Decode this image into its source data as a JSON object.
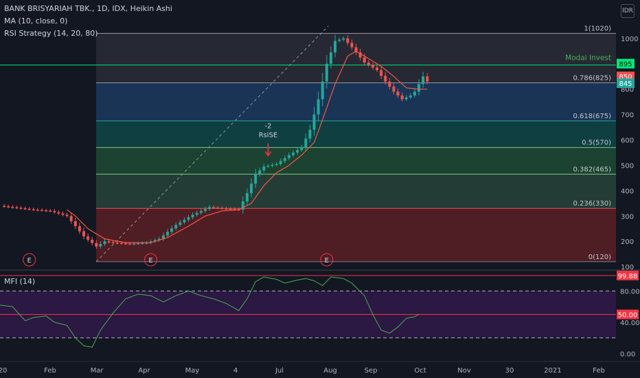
{
  "legend": {
    "symbol_line": "BANK BRISYARIAH TBK., 1D, IDX, Heikin Ashi",
    "ma_line": "MA (10, close, 0)",
    "rsi_line": "RSI Strategy (14, 20, 80)"
  },
  "currency_badge": "IDR",
  "colors": {
    "background": "#131722",
    "up": "#26a69a",
    "down": "#ef5350",
    "ma": "#f05a46",
    "fib_line": "#787b86",
    "modal_invest": "#00e676",
    "mfi": "#4caf50",
    "mfi_band": "#6a1b9a",
    "mfi_ref": "#f23645"
  },
  "chart_data": {
    "type": "candlestick",
    "title": "BANK BRISYARIAH TBK., 1D, IDX, Heikin Ashi",
    "x_tick_labels": [
      "20",
      "Feb",
      "Mar",
      "Apr",
      "May",
      "4",
      "Jul",
      "Aug",
      "Sep",
      "Oct",
      "Nov",
      "30",
      "2021",
      "Feb"
    ],
    "y_ticks": [
      100,
      200,
      300,
      400,
      500,
      600,
      700,
      800,
      900,
      1000
    ],
    "y_range": [
      95,
      1070
    ],
    "fibonacci": [
      {
        "label": "1(1020)",
        "value": 1020
      },
      {
        "label": "0.786(825)",
        "value": 825
      },
      {
        "label": "0.618(675)",
        "value": 675
      },
      {
        "label": "0.5(570)",
        "value": 570
      },
      {
        "label": "0.382(465)",
        "value": 465
      },
      {
        "label": "0.236(330)",
        "value": 330
      },
      {
        "label": "0(120)",
        "value": 120
      }
    ],
    "horizontal_line": {
      "label": "Modal Invest",
      "value": 895
    },
    "price_labels": [
      {
        "text": "895",
        "value": 895,
        "color": "#00e676"
      },
      {
        "text": "850",
        "value": 850,
        "color": "#ef5350"
      },
      {
        "text": "845",
        "value": 845,
        "color": "#26a69a"
      }
    ],
    "signal": {
      "text1": "-2",
      "text2": "RsiSE",
      "date_index": 64,
      "value": 505
    },
    "earnings_markers": [
      {
        "text": "E",
        "date_index": 7
      },
      {
        "text": "E",
        "date_index": 36
      },
      {
        "text": "E",
        "date_index": 78
      }
    ],
    "price_keypoints": [
      [
        0,
        340
      ],
      [
        8,
        325
      ],
      [
        12,
        320
      ],
      [
        16,
        300
      ],
      [
        18,
        260
      ],
      [
        20,
        220
      ],
      [
        23,
        180
      ],
      [
        25,
        200
      ],
      [
        27,
        195
      ],
      [
        31,
        190
      ],
      [
        35,
        195
      ],
      [
        38,
        210
      ],
      [
        42,
        265
      ],
      [
        46,
        305
      ],
      [
        50,
        335
      ],
      [
        53,
        330
      ],
      [
        57,
        325
      ],
      [
        59,
        390
      ],
      [
        61,
        465
      ],
      [
        63,
        495
      ],
      [
        66,
        505
      ],
      [
        69,
        540
      ],
      [
        72,
        570
      ],
      [
        74,
        640
      ],
      [
        76,
        760
      ],
      [
        78,
        900
      ],
      [
        80,
        990
      ],
      [
        82,
        1000
      ],
      [
        84,
        965
      ],
      [
        87,
        905
      ],
      [
        90,
        875
      ],
      [
        92,
        830
      ],
      [
        94,
        790
      ],
      [
        96,
        760
      ],
      [
        98,
        775
      ],
      [
        99,
        790
      ],
      [
        101,
        850
      ],
      [
        102,
        830
      ]
    ],
    "ma_keypoints": [
      [
        16,
        325
      ],
      [
        18,
        300
      ],
      [
        21,
        250
      ],
      [
        25,
        210
      ],
      [
        30,
        195
      ],
      [
        36,
        195
      ],
      [
        40,
        215
      ],
      [
        45,
        260
      ],
      [
        49,
        300
      ],
      [
        53,
        320
      ],
      [
        57,
        325
      ],
      [
        60,
        350
      ],
      [
        63,
        420
      ],
      [
        66,
        470
      ],
      [
        69,
        500
      ],
      [
        72,
        540
      ],
      [
        75,
        590
      ],
      [
        77,
        680
      ],
      [
        80,
        820
      ],
      [
        83,
        930
      ],
      [
        85,
        950
      ],
      [
        88,
        920
      ],
      [
        91,
        890
      ],
      [
        94,
        850
      ],
      [
        97,
        805
      ],
      [
        100,
        800
      ],
      [
        102,
        800
      ]
    ],
    "mfi": {
      "name": "MFI (14)",
      "y_ticks": [
        0,
        20,
        40,
        60,
        80,
        100
      ],
      "y_tick_labels": [
        "0.00",
        "",
        "40.00",
        "",
        "80.00",
        ""
      ],
      "y_range": [
        -5,
        105
      ],
      "upper_band": 80,
      "lower_band": 20,
      "ref_lines": [
        99.88,
        50
      ],
      "value_labels": [
        {
          "text": "99.88",
          "value": 99.88
        },
        {
          "text": "50.00",
          "value": 50
        }
      ],
      "keypoints": [
        [
          0,
          62
        ],
        [
          3,
          60
        ],
        [
          6,
          42
        ],
        [
          8,
          46
        ],
        [
          11,
          48
        ],
        [
          13,
          40
        ],
        [
          16,
          36
        ],
        [
          18,
          20
        ],
        [
          20,
          10
        ],
        [
          22,
          8
        ],
        [
          24,
          30
        ],
        [
          27,
          52
        ],
        [
          30,
          70
        ],
        [
          33,
          76
        ],
        [
          36,
          74
        ],
        [
          39,
          66
        ],
        [
          42,
          74
        ],
        [
          45,
          80
        ],
        [
          48,
          74
        ],
        [
          51,
          70
        ],
        [
          54,
          64
        ],
        [
          57,
          55
        ],
        [
          59,
          70
        ],
        [
          61,
          92
        ],
        [
          63,
          98
        ],
        [
          66,
          95
        ],
        [
          68,
          90
        ],
        [
          71,
          94
        ],
        [
          73,
          96
        ],
        [
          75,
          93
        ],
        [
          77,
          87
        ],
        [
          79,
          98
        ],
        [
          82,
          96
        ],
        [
          84,
          90
        ],
        [
          87,
          74
        ],
        [
          89,
          50
        ],
        [
          91,
          30
        ],
        [
          93,
          26
        ],
        [
          95,
          34
        ],
        [
          97,
          45
        ],
        [
          99,
          47
        ],
        [
          100,
          50
        ]
      ]
    }
  }
}
